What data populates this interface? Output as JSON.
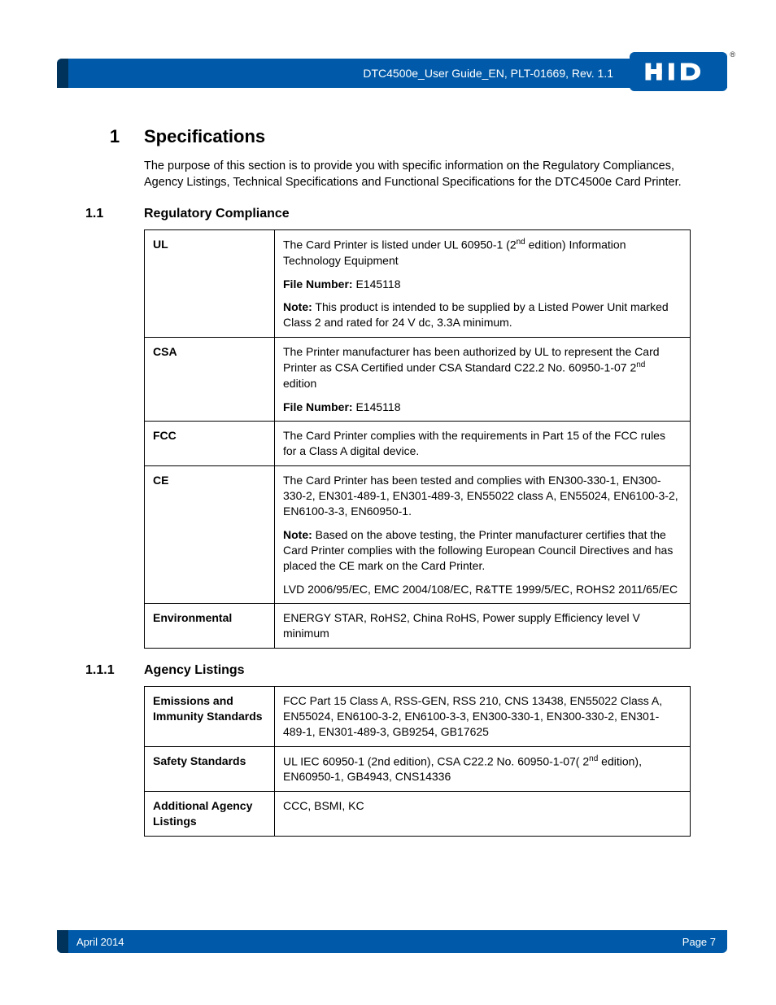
{
  "header": {
    "doc_title": "DTC4500e_User Guide_EN, PLT-01669, Rev. 1.1",
    "logo_text": "HID",
    "reg_mark": "®"
  },
  "section1": {
    "num": "1",
    "title": "Specifications",
    "intro": "The purpose of this section is to provide you with specific information on the Regulatory Compliances, Agency Listings, Technical Specifications and Functional Specifications for the DTC4500e Card Printer."
  },
  "section11": {
    "num": "1.1",
    "title": "Regulatory Compliance",
    "rows": [
      {
        "label": "UL",
        "paras": [
          {
            "pre": "",
            "bold": "",
            "text": "The Card Printer is listed under UL 60950-1 (2",
            "sup": "nd",
            "post": " edition) Information Technology Equipment"
          },
          {
            "pre": "",
            "bold": "File Number:",
            "text": " E145118",
            "sup": "",
            "post": ""
          },
          {
            "pre": "",
            "bold": "Note:",
            "text": " This product is intended to be supplied by a Listed Power Unit marked Class 2 and rated for 24 V dc, 3.3A minimum.",
            "sup": "",
            "post": ""
          }
        ]
      },
      {
        "label": "CSA",
        "paras": [
          {
            "pre": "",
            "bold": "",
            "text": "The Printer manufacturer has been authorized by UL to represent the Card Printer as CSA Certified under CSA Standard C22.2 No. 60950-1-07 2",
            "sup": "nd",
            "post": " edition"
          },
          {
            "pre": "",
            "bold": "File Number:",
            "text": " E145118",
            "sup": "",
            "post": ""
          }
        ]
      },
      {
        "label": "FCC",
        "paras": [
          {
            "pre": "",
            "bold": "",
            "text": "The Card Printer complies with the requirements in Part 15 of the FCC rules for a Class A digital device.",
            "sup": "",
            "post": ""
          }
        ]
      },
      {
        "label": "CE",
        "paras": [
          {
            "pre": "",
            "bold": "",
            "text": "The Card Printer has been tested and complies with EN300-330-1, EN300-330-2, EN301-489-1, EN301-489-3, EN55022 class A, EN55024, EN6100-3-2, EN6100-3-3, EN60950-1.",
            "sup": "",
            "post": ""
          },
          {
            "pre": "",
            "bold": "Note:",
            "text": " Based on the above testing, the Printer manufacturer certifies that the Card Printer complies with the following European Council Directives and has placed the CE mark on the Card Printer.",
            "sup": "",
            "post": ""
          },
          {
            "pre": "",
            "bold": "",
            "text": "LVD 2006/95/EC, EMC 2004/108/EC, R&TTE 1999/5/EC, ROHS2 2011/65/EC",
            "sup": "",
            "post": ""
          }
        ]
      },
      {
        "label": "Environmental",
        "paras": [
          {
            "pre": "",
            "bold": "",
            "text": "ENERGY STAR, RoHS2, China RoHS, Power supply Efficiency level V minimum",
            "sup": "",
            "post": ""
          }
        ]
      }
    ]
  },
  "section111": {
    "num": "1.1.1",
    "title": "Agency Listings",
    "rows": [
      {
        "label": "Emissions and Immunity Standards",
        "paras": [
          {
            "pre": "",
            "bold": "",
            "text": "FCC Part 15 Class A, RSS-GEN, RSS 210, CNS 13438, EN55022 Class A, EN55024, EN6100-3-2, EN6100-3-3, EN300-330-1, EN300-330-2, EN301-489-1, EN301-489-3, GB9254, GB17625",
            "sup": "",
            "post": ""
          }
        ]
      },
      {
        "label": "Safety Standards",
        "paras": [
          {
            "pre": "",
            "bold": "",
            "text": "UL IEC 60950-1 (2nd edition), CSA C22.2 No. 60950-1-07( 2",
            "sup": "nd",
            "post": " edition), EN60950-1, GB4943, CNS14336"
          }
        ]
      },
      {
        "label": "Additional Agency Listings",
        "paras": [
          {
            "pre": "",
            "bold": "",
            "text": "CCC, BSMI, KC",
            "sup": "",
            "post": ""
          }
        ]
      }
    ]
  },
  "footer": {
    "date": "April 2014",
    "page": "Page 7"
  },
  "colors": {
    "brand": "#005aa9",
    "brand_dark": "#00335c"
  }
}
